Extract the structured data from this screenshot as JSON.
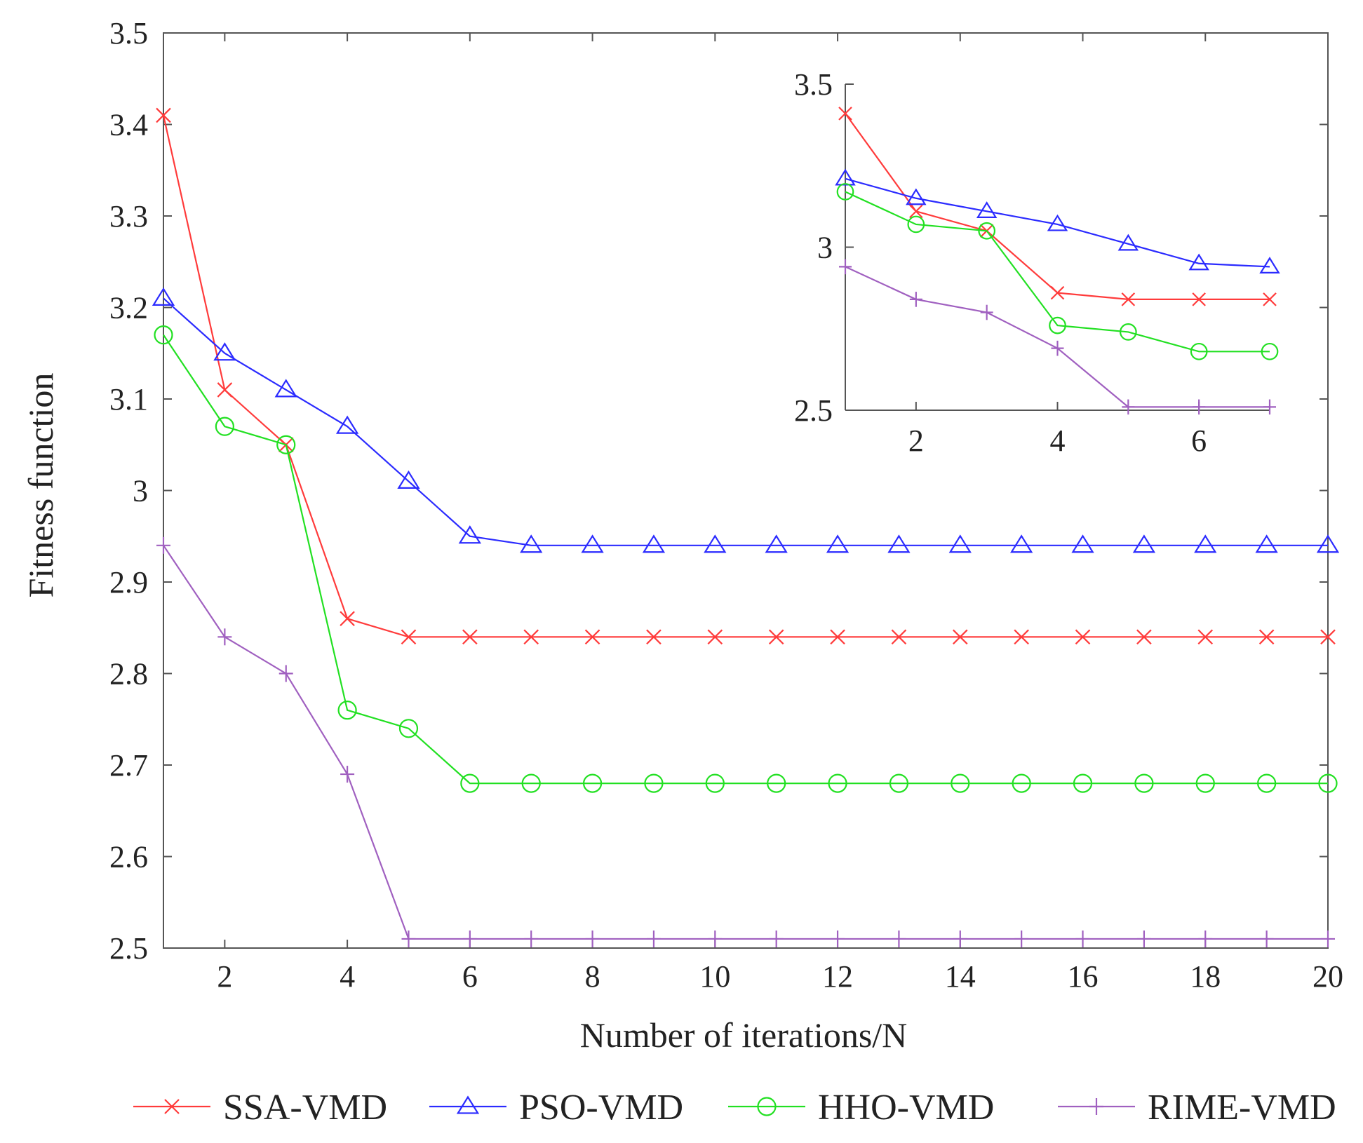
{
  "chart_data": {
    "type": "line",
    "xlabel": "Number of iterations/N",
    "ylabel": "Fitness function",
    "xlim": [
      1,
      20
    ],
    "ylim": [
      2.5,
      3.5
    ],
    "xticks": [
      "2",
      "4",
      "6",
      "8",
      "10",
      "12",
      "14",
      "16",
      "18",
      "20"
    ],
    "yticks": [
      "2.5",
      "2.6",
      "2.7",
      "2.8",
      "2.9",
      "3",
      "3.1",
      "3.2",
      "3.3",
      "3.4",
      "3.5"
    ],
    "grid": false,
    "legend_position": "bottom",
    "x": [
      1,
      2,
      3,
      4,
      5,
      6,
      7,
      8,
      9,
      10,
      11,
      12,
      13,
      14,
      15,
      16,
      17,
      18,
      19,
      20
    ],
    "series": [
      {
        "name": "SSA-VMD",
        "color": "#ff3b3b",
        "marker": "x",
        "values": [
          3.41,
          3.11,
          3.05,
          2.86,
          2.84,
          2.84,
          2.84,
          2.84,
          2.84,
          2.84,
          2.84,
          2.84,
          2.84,
          2.84,
          2.84,
          2.84,
          2.84,
          2.84,
          2.84,
          2.84
        ]
      },
      {
        "name": "PSO-VMD",
        "color": "#2b2bff",
        "marker": "triangle",
        "values": [
          3.21,
          3.15,
          3.11,
          3.07,
          3.01,
          2.95,
          2.94,
          2.94,
          2.94,
          2.94,
          2.94,
          2.94,
          2.94,
          2.94,
          2.94,
          2.94,
          2.94,
          2.94,
          2.94,
          2.94
        ]
      },
      {
        "name": "HHO-VMD",
        "color": "#22e022",
        "marker": "circle",
        "values": [
          3.17,
          3.07,
          3.05,
          2.76,
          2.74,
          2.68,
          2.68,
          2.68,
          2.68,
          2.68,
          2.68,
          2.68,
          2.68,
          2.68,
          2.68,
          2.68,
          2.68,
          2.68,
          2.68,
          2.68
        ]
      },
      {
        "name": "RIME-VMD",
        "color": "#a060c0",
        "marker": "plus",
        "values": [
          2.94,
          2.84,
          2.8,
          2.69,
          2.51,
          2.51,
          2.51,
          2.51,
          2.51,
          2.51,
          2.51,
          2.51,
          2.51,
          2.51,
          2.51,
          2.51,
          2.51,
          2.51,
          2.51,
          2.51
        ]
      }
    ],
    "inset": {
      "xlim": [
        1,
        7
      ],
      "ylim": [
        2.5,
        3.5
      ],
      "xticks": [
        "2",
        "4",
        "6"
      ],
      "yticks": [
        "2.5",
        "3",
        "3.5"
      ]
    }
  }
}
